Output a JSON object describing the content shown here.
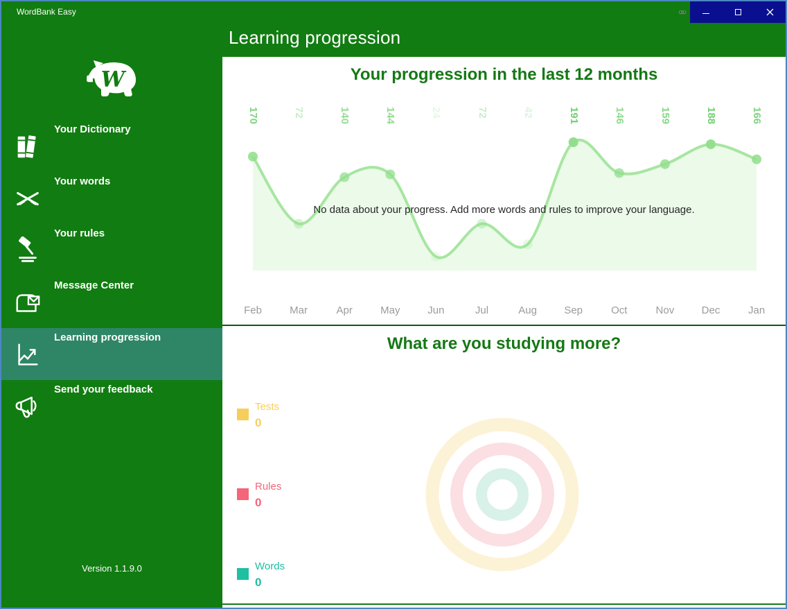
{
  "theme": {
    "green": "#117c11",
    "selected_green": "#2e8666",
    "heading_green": "#157815",
    "separator_green": "#0b5e0b",
    "window_border_blue": "#4c86c2",
    "controls_navy": "#0a0f8f",
    "month_label_gray": "#9b9b9b",
    "message_text": "#262626",
    "label_green": "#6fd06f"
  },
  "window": {
    "title": "WordBank Easy",
    "control_icons": [
      "minimize-icon",
      "maximize-icon",
      "close-icon"
    ],
    "cursor_glyph": "↔"
  },
  "sidebar": {
    "logo_letter": "W",
    "items": [
      {
        "label": "Your Dictionary",
        "icon": "books-icon",
        "selected": false
      },
      {
        "label": "Your words",
        "icon": "crossed-swords-icon",
        "selected": false
      },
      {
        "label": "Your rules",
        "icon": "gavel-icon",
        "selected": false
      },
      {
        "label": "Message Center",
        "icon": "mailbox-icon",
        "selected": false
      },
      {
        "label": "Learning progression",
        "icon": "line-chart-icon",
        "selected": true
      },
      {
        "label": "Send your feedback",
        "icon": "megaphone-icon",
        "selected": false
      }
    ],
    "version": "Version 1.1.9.0"
  },
  "header": {
    "title": "Learning progression"
  },
  "chart_data": [
    {
      "type": "line",
      "title": "Your progression in the last 12 months",
      "categories": [
        "Feb",
        "Mar",
        "Apr",
        "May",
        "Jun",
        "Jul",
        "Aug",
        "Sep",
        "Oct",
        "Nov",
        "Dec",
        "Jan"
      ],
      "values": [
        170,
        72,
        140,
        144,
        24,
        72,
        42,
        191,
        146,
        159,
        188,
        166
      ],
      "ylim": [
        0,
        191
      ],
      "empty_message": "No data about your progress. Add more words and rules to improve your language.",
      "line_color": "#a7e6a1",
      "dot_color": "#93de8e",
      "area_color": "rgba(167,230,161,0.22)",
      "grid": false,
      "legend_position": "none"
    },
    {
      "type": "doughnut",
      "title": "What are you studying more?",
      "legend_position": "left",
      "legend": [
        {
          "label": "Tests",
          "value": "0",
          "color": "#f7ce5b",
          "ring_color": "#fcf2d6"
        },
        {
          "label": "Rules",
          "value": "0",
          "color": "#f4657a",
          "ring_color": "#fbdfe3"
        },
        {
          "label": "Words",
          "value": "0",
          "color": "#1fbfa2",
          "ring_color": "#d8f1e9"
        }
      ]
    }
  ]
}
